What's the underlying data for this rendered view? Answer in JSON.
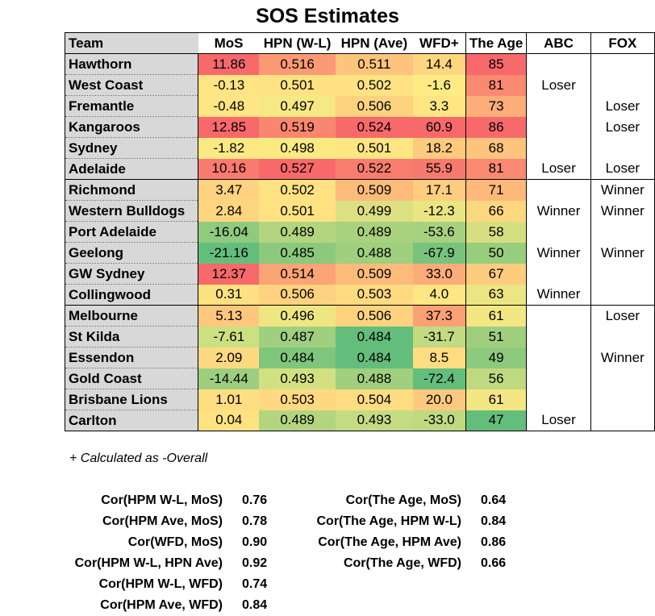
{
  "title": "SOS Estimates",
  "columns": [
    "Team",
    "MoS",
    "HPN (W-L)",
    "HPN (Ave)",
    "WFD+",
    "The Age",
    "ABC",
    "FOX"
  ],
  "rows": [
    {
      "team": "Hawthorn",
      "mos": "11.86",
      "hpn_wl": "0.516",
      "hpn_ave": "0.511",
      "wfd": "14.4",
      "age": "85",
      "abc": "",
      "fox": "",
      "colors": [
        "#f8696b",
        "#fb9a74",
        "#fdc47d",
        "#fed680",
        "#f8696b"
      ]
    },
    {
      "team": "West Coast",
      "mos": "-0.13",
      "hpn_wl": "0.501",
      "hpn_ave": "0.502",
      "wfd": "-1.6",
      "age": "81",
      "abc": "Loser",
      "fox": "",
      "colors": [
        "#ffe483",
        "#ffe383",
        "#ffe383",
        "#ffeb84",
        "#f98970"
      ]
    },
    {
      "team": "Fremantle",
      "mos": "-0.48",
      "hpn_wl": "0.497",
      "hpn_ave": "0.506",
      "wfd": "3.3",
      "age": "73",
      "abc": "",
      "fox": "Loser",
      "colors": [
        "#ffe583",
        "#f6e883",
        "#fed380",
        "#ffe683",
        "#fcad78"
      ]
    },
    {
      "team": "Kangaroos",
      "mos": "12.85",
      "hpn_wl": "0.519",
      "hpn_ave": "0.524",
      "wfd": "60.9",
      "age": "86",
      "abc": "",
      "fox": "Loser",
      "colors": [
        "#f8696b",
        "#f98770",
        "#f8696b",
        "#f8696b",
        "#f8696b"
      ]
    },
    {
      "team": "Sydney",
      "mos": "-1.82",
      "hpn_wl": "0.498",
      "hpn_ave": "0.501",
      "wfd": "18.2",
      "age": "68",
      "abc": "",
      "fox": "",
      "colors": [
        "#fce983",
        "#fbea84",
        "#ffe683",
        "#fecb7e",
        "#fdc47d"
      ]
    },
    {
      "team": "Adelaide",
      "mos": "10.16",
      "hpn_wl": "0.527",
      "hpn_ave": "0.522",
      "wfd": "55.9",
      "age": "81",
      "abc": "Loser",
      "fox": "Loser",
      "colors": [
        "#f97a6e",
        "#f8696b",
        "#f87d6e",
        "#f87a6e",
        "#f98970"
      ]
    },
    {
      "team": "Richmond",
      "mos": "3.47",
      "hpn_wl": "0.502",
      "hpn_ave": "0.509",
      "wfd": "17.1",
      "age": "71",
      "abc": "",
      "fox": "Winner",
      "colors": [
        "#fed280",
        "#fee283",
        "#fcbb7b",
        "#fecd7f",
        "#fdb87a"
      ]
    },
    {
      "team": "Western Bulldogs",
      "mos": "2.84",
      "hpn_wl": "0.501",
      "hpn_ave": "0.499",
      "wfd": "-12.3",
      "age": "66",
      "abc": "Winner",
      "fox": "Winner",
      "colors": [
        "#ffd680",
        "#ffe383",
        "#dde082",
        "#eae583",
        "#fed781"
      ]
    },
    {
      "team": "Port Adelaide",
      "mos": "-16.04",
      "hpn_wl": "0.489",
      "hpn_ave": "0.489",
      "wfd": "-53.6",
      "age": "58",
      "abc": "",
      "fox": "",
      "colors": [
        "#8fca7e",
        "#b3d580",
        "#a9d27f",
        "#a7d17f",
        "#d5df82"
      ]
    },
    {
      "team": "Geelong",
      "mos": "-21.16",
      "hpn_wl": "0.485",
      "hpn_ave": "0.488",
      "wfd": "-67.9",
      "age": "50",
      "abc": "Winner",
      "fox": "Winner",
      "colors": [
        "#63be7b",
        "#8cc97d",
        "#a0cf7e",
        "#78c47c",
        "#98cd7e"
      ]
    },
    {
      "team": "GW Sydney",
      "mos": "12.37",
      "hpn_wl": "0.514",
      "hpn_ave": "0.509",
      "wfd": "33.0",
      "age": "67",
      "abc": "",
      "fox": "",
      "colors": [
        "#f8696b",
        "#fba475",
        "#fcbb7b",
        "#fcac78",
        "#fecc7f"
      ]
    },
    {
      "team": "Collingwood",
      "mos": "0.31",
      "hpn_wl": "0.506",
      "hpn_ave": "0.503",
      "wfd": "4.0",
      "age": "63",
      "abc": "Winner",
      "fox": "",
      "colors": [
        "#ffe183",
        "#fed280",
        "#feda81",
        "#ffe583",
        "#ebe583"
      ]
    },
    {
      "team": "Melbourne",
      "mos": "5.13",
      "hpn_wl": "0.496",
      "hpn_ave": "0.506",
      "wfd": "37.3",
      "age": "61",
      "abc": "",
      "fox": "Loser",
      "colors": [
        "#fec77e",
        "#eee683",
        "#fed380",
        "#fba175",
        "#f2e783"
      ]
    },
    {
      "team": "St Kilda",
      "mos": "-7.61",
      "hpn_wl": "0.487",
      "hpn_ave": "0.484",
      "wfd": "-31.7",
      "age": "51",
      "abc": "",
      "fox": "",
      "colors": [
        "#cce082",
        "#a0d07f",
        "#63be7b",
        "#c2da81",
        "#9fcf7e"
      ]
    },
    {
      "team": "Essendon",
      "mos": "2.09",
      "hpn_wl": "0.484",
      "hpn_ave": "0.484",
      "wfd": "8.5",
      "age": "49",
      "abc": "",
      "fox": "Winner",
      "colors": [
        "#fed981",
        "#7fc67d",
        "#63be7b",
        "#fedd82",
        "#8dca7e"
      ]
    },
    {
      "team": "Gold Coast",
      "mos": "-14.44",
      "hpn_wl": "0.493",
      "hpn_ave": "0.488",
      "wfd": "-72.4",
      "age": "56",
      "abc": "",
      "fox": "",
      "colors": [
        "#9dce7f",
        "#d3e082",
        "#a0cf7e",
        "#63be7b",
        "#c0d981"
      ]
    },
    {
      "team": "Brisbane Lions",
      "mos": "1.01",
      "hpn_wl": "0.503",
      "hpn_ave": "0.504",
      "wfd": "20.0",
      "age": "61",
      "abc": "",
      "fox": "",
      "colors": [
        "#ffde82",
        "#fed981",
        "#fedc81",
        "#fec97e",
        "#f2e783"
      ]
    },
    {
      "team": "Carlton",
      "mos": "0.04",
      "hpn_wl": "0.489",
      "hpn_ave": "0.493",
      "wfd": "-33.0",
      "age": "47",
      "abc": "Loser",
      "fox": "",
      "colors": [
        "#ffe383",
        "#b3d580",
        "#c4dc81",
        "#bfd981",
        "#63be7b"
      ]
    }
  ],
  "footnote": "+ Calculated as -Overall",
  "correlations_left": [
    {
      "label": "Cor(HPM W-L, MoS)",
      "value": "0.76"
    },
    {
      "label": "Cor(HPM Ave, MoS)",
      "value": "0.78"
    },
    {
      "label": "Cor(WFD, MoS)",
      "value": "0.90"
    },
    {
      "label": "Cor(HPM W-L, HPN Ave)",
      "value": "0.92"
    },
    {
      "label": "Cor(HPM W-L, WFD)",
      "value": "0.74"
    },
    {
      "label": "Cor(HPM Ave, WFD)",
      "value": "0.84"
    }
  ],
  "correlations_right": [
    {
      "label": "Cor(The Age, MoS)",
      "value": "0.64"
    },
    {
      "label": "Cor(The Age, HPM W-L)",
      "value": "0.84"
    },
    {
      "label": "Cor(The Age, HPM Ave)",
      "value": "0.86"
    },
    {
      "label": "Cor(The Age, WFD)",
      "value": "0.66"
    }
  ]
}
